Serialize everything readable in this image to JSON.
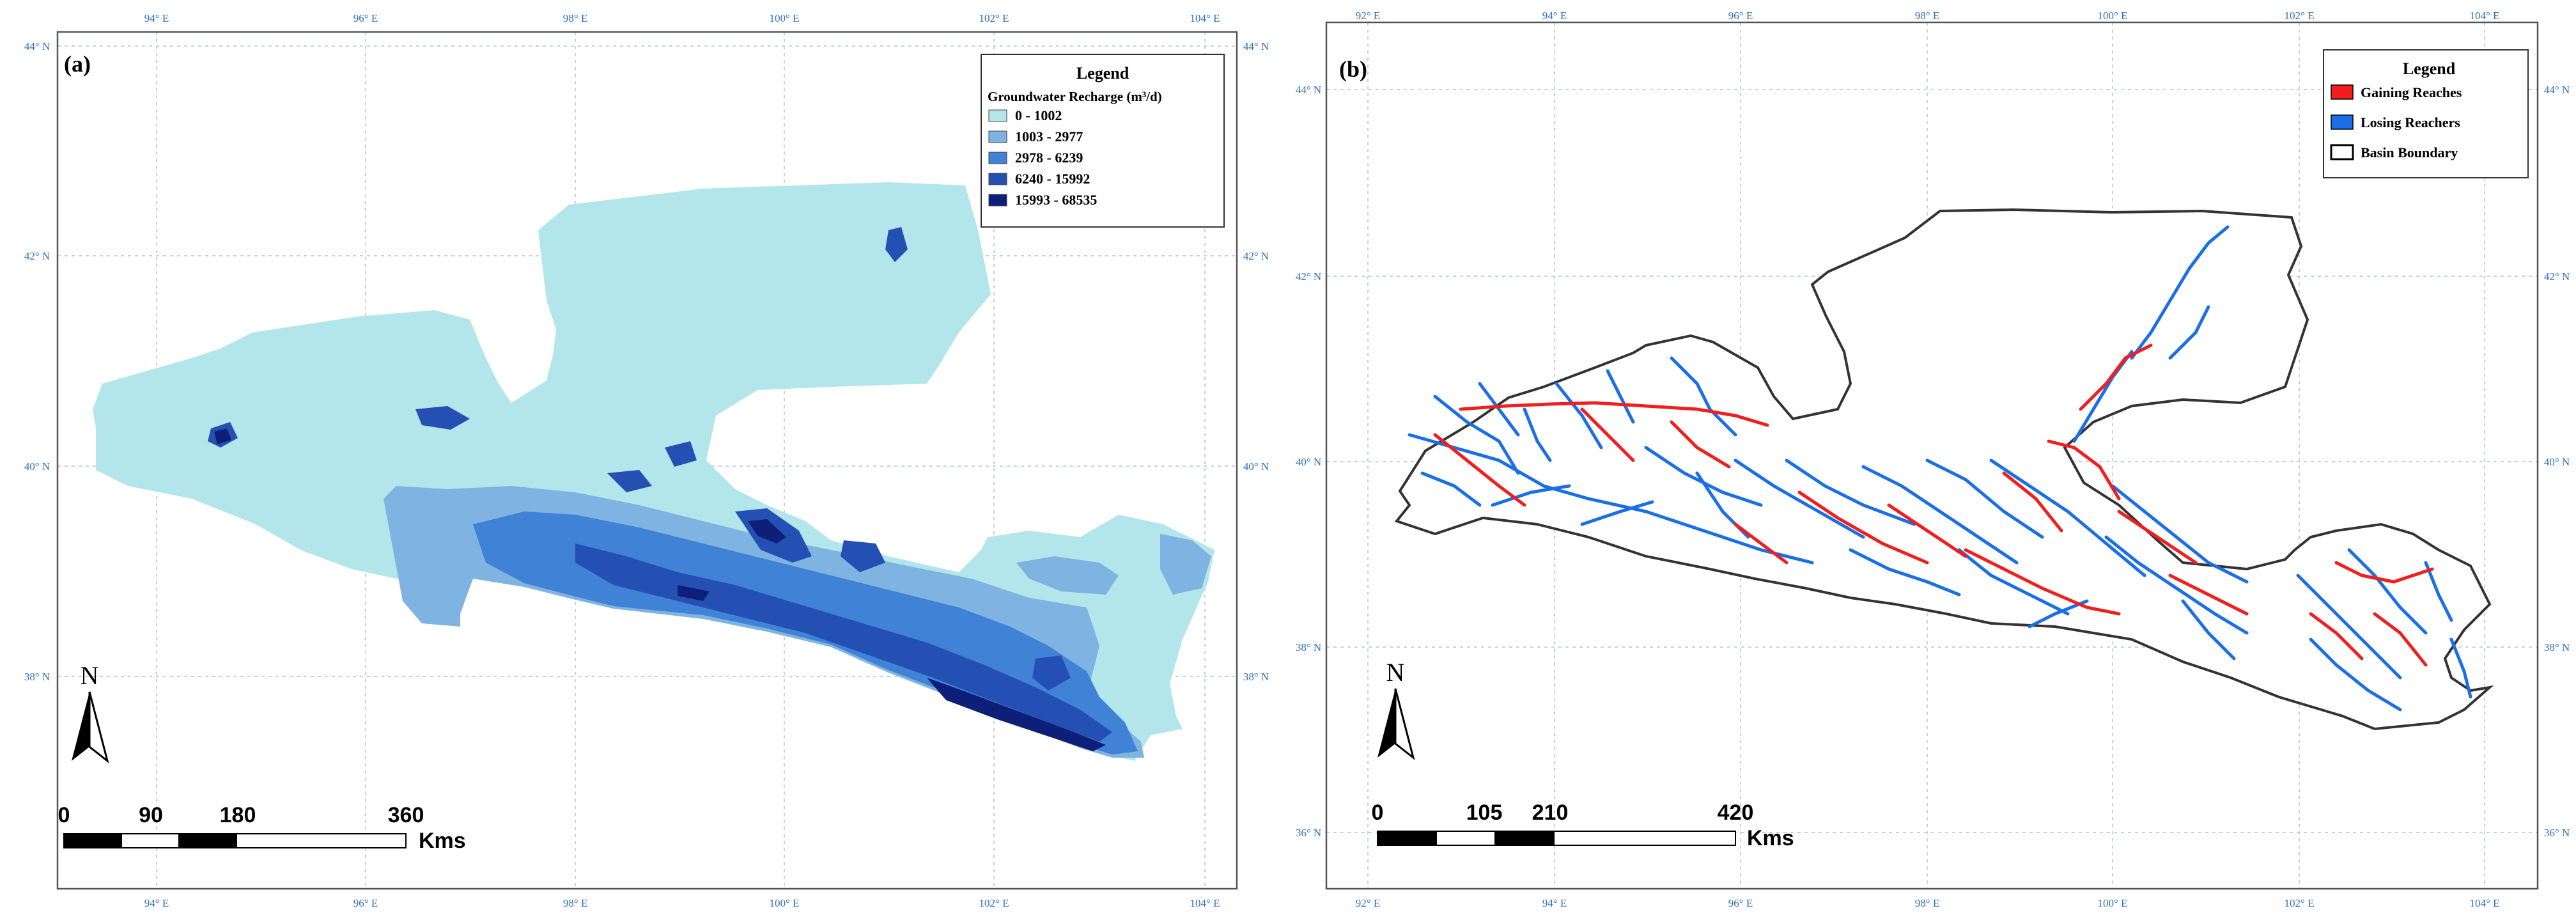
{
  "panel_a": {
    "label": "(a)",
    "legend": {
      "title": "Legend",
      "subtitle": "Groundwater Recharge (m³/d)",
      "classes": [
        {
          "label": "0 - 1002",
          "color": "#b3e6ea"
        },
        {
          "label": "1003 - 2977",
          "color": "#7eb3e2"
        },
        {
          "label": "2978 - 6239",
          "color": "#3f82d6"
        },
        {
          "label": "6240 - 15992",
          "color": "#2450b3"
        },
        {
          "label": "15993 - 68535",
          "color": "#0d1f78"
        }
      ]
    },
    "north": "N",
    "scalebar": {
      "ticks": [
        "0",
        "90",
        "180",
        "360"
      ],
      "unit": "Kms"
    },
    "lon_labels": [
      "94° E",
      "96° E",
      "98° E",
      "100° E",
      "102° E",
      "104° E"
    ],
    "lat_labels": [
      "44° N",
      "42° N",
      "40° N",
      "38° N"
    ]
  },
  "panel_b": {
    "label": "(b)",
    "legend": {
      "title": "Legend",
      "items": [
        {
          "label": "Gaining Reaches",
          "color": "#f21d1d",
          "type": "fill"
        },
        {
          "label": "Losing Reachers",
          "color": "#1a6fe8",
          "type": "fill"
        },
        {
          "label": "Basin Boundary",
          "color": "#ffffff",
          "type": "outline"
        }
      ]
    },
    "north": "N",
    "scalebar": {
      "ticks": [
        "0",
        "105",
        "210",
        "420"
      ],
      "unit": "Kms"
    },
    "lon_labels": [
      "92° E",
      "94° E",
      "96° E",
      "98° E",
      "100° E",
      "102° E",
      "104° E"
    ],
    "lat_labels": [
      "44° N",
      "42° N",
      "40° N",
      "38° N",
      "36° N"
    ]
  }
}
